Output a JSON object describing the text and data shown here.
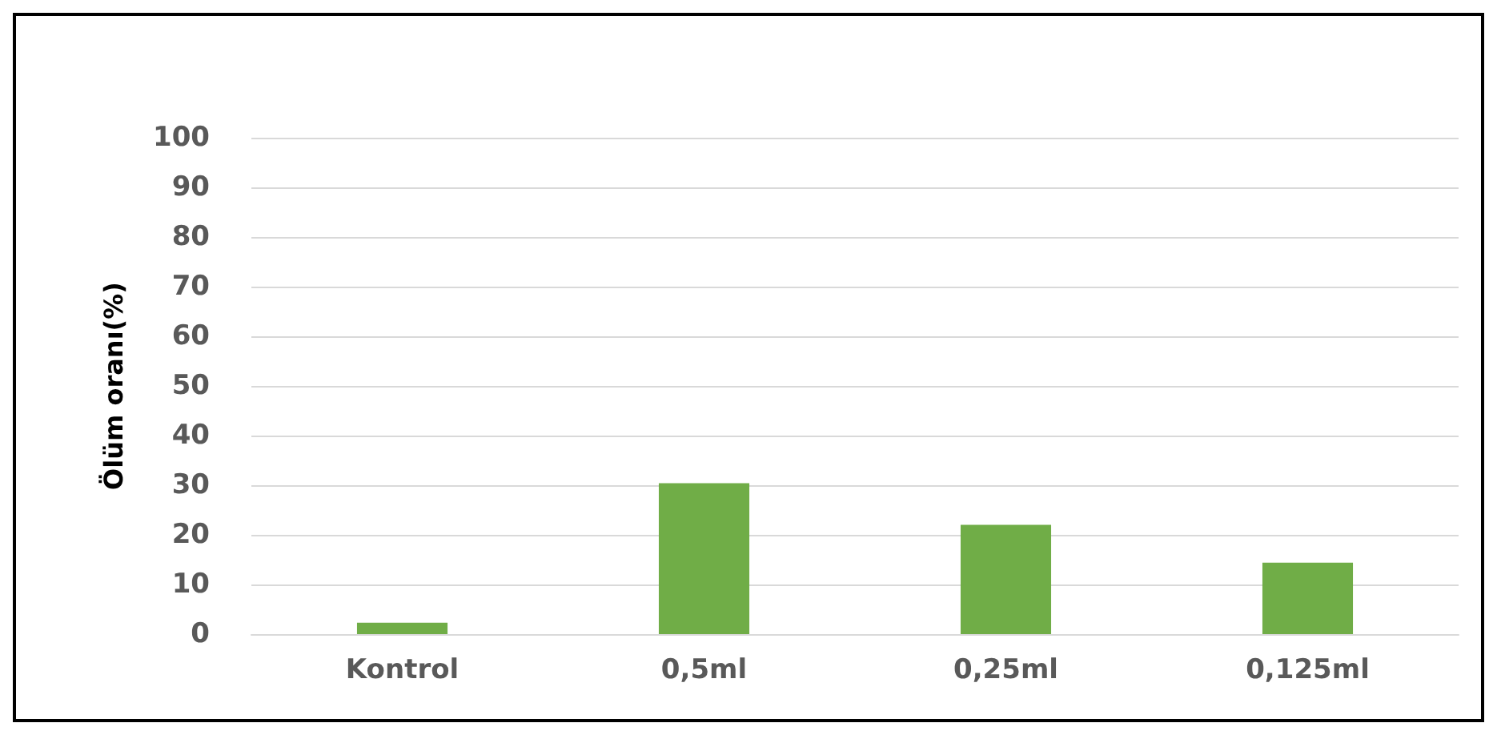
{
  "chart_data": {
    "type": "bar",
    "ylabel": "Ölüm oranı(%)",
    "categories": [
      "Kontrol",
      "0,5ml",
      "0,25ml",
      "0,125ml"
    ],
    "values": [
      2.3,
      30.4,
      22,
      14.4
    ],
    "color": "#70ad47",
    "ylim": [
      0,
      100
    ],
    "yticks": [
      0,
      10,
      20,
      30,
      40,
      50,
      60,
      70,
      80,
      90,
      100
    ],
    "grid": "y"
  }
}
